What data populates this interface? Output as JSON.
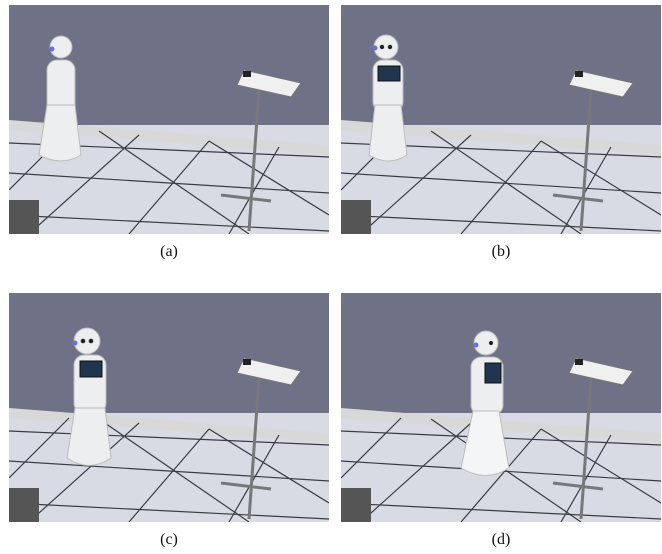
{
  "figure": {
    "panels": [
      {
        "id": "a",
        "caption": "(a)",
        "robot_pose": "profile-left",
        "tablet_visible": false
      },
      {
        "id": "b",
        "caption": "(b)",
        "robot_pose": "facing-right",
        "tablet_visible": true
      },
      {
        "id": "c",
        "caption": "(c)",
        "robot_pose": "facing-forward",
        "tablet_visible": true
      },
      {
        "id": "d",
        "caption": "(d)",
        "robot_pose": "facing-right-center",
        "tablet_visible": true
      }
    ]
  },
  "colors": {
    "wall": "#6f7286",
    "floor": "#d9dbe4",
    "tile_line": "#3b3b42",
    "robot": "#eceef0",
    "stand": "#76787c",
    "tablet": "#1f3550",
    "eye": "#6b6ee0"
  }
}
